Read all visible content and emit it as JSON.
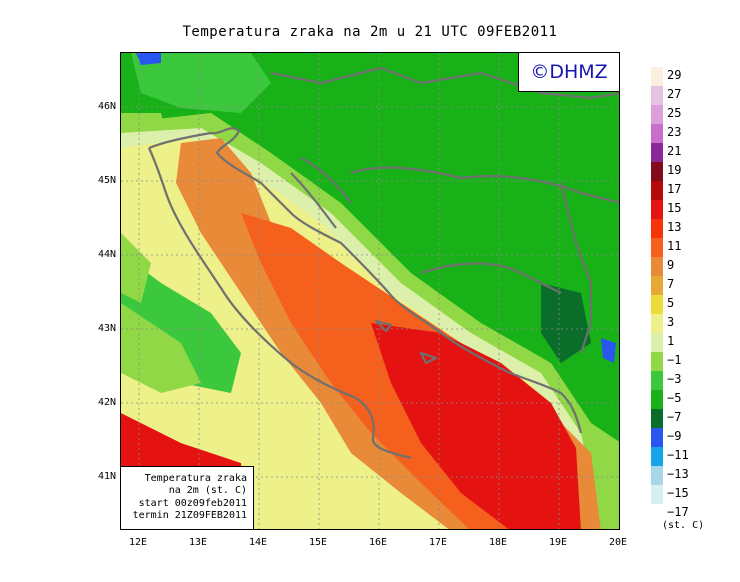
{
  "title": "Temperatura zraka na 2m u 21 UTC 09FEB2011",
  "logo": "©DHMZ",
  "info": {
    "line1": "Temperatura zraka",
    "line2": "na 2m (st. C)",
    "line3": "start 00z09feb2011",
    "line4": "termin 21Z09FEB2011"
  },
  "y_ticks": [
    "46N",
    "45N",
    "44N",
    "43N",
    "42N",
    "41N"
  ],
  "x_ticks": [
    "12E",
    "13E",
    "14E",
    "15E",
    "16E",
    "17E",
    "18E",
    "19E",
    "20E"
  ],
  "legend": {
    "unit": "(st. C)",
    "levels": [
      {
        "label": "29",
        "color": "#fbefdf"
      },
      {
        "label": "27",
        "color": "#e6c4e1"
      },
      {
        "label": "25",
        "color": "#dc9fdb"
      },
      {
        "label": "23",
        "color": "#c86ecb"
      },
      {
        "label": "21",
        "color": "#8a2a98"
      },
      {
        "label": "19",
        "color": "#820a1a"
      },
      {
        "label": "17",
        "color": "#b40a0a"
      },
      {
        "label": "15",
        "color": "#e51212"
      },
      {
        "label": "13",
        "color": "#f5340a"
      },
      {
        "label": "11",
        "color": "#f5601c"
      },
      {
        "label": "9",
        "color": "#e88a38"
      },
      {
        "label": "7",
        "color": "#e8a838"
      },
      {
        "label": "5",
        "color": "#ecdc3a"
      },
      {
        "label": "3",
        "color": "#eef08a"
      },
      {
        "label": "1",
        "color": "#dcf0ac"
      },
      {
        "label": "−1",
        "color": "#90d845"
      },
      {
        "label": "−3",
        "color": "#3cc83c"
      },
      {
        "label": "−5",
        "color": "#18b218"
      },
      {
        "label": "−7",
        "color": "#0a6e2a"
      },
      {
        "label": "−9",
        "color": "#2a56f0"
      },
      {
        "label": "−11",
        "color": "#16a6e8"
      },
      {
        "label": "−13",
        "color": "#a8d8e8"
      },
      {
        "label": "−15",
        "color": "#d6f0f0"
      },
      {
        "label": "−17",
        "color": "#ffffff"
      }
    ]
  }
}
